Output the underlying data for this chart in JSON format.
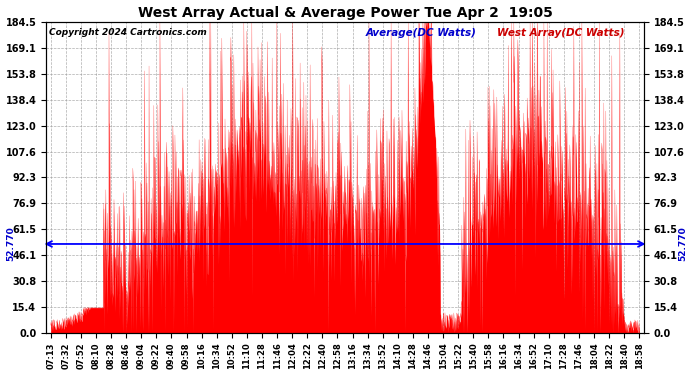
{
  "title": "West Array Actual & Average Power Tue Apr 2  19:05",
  "copyright": "Copyright 2024 Cartronics.com",
  "legend_avg": "Average(DC Watts)",
  "legend_west": "West Array(DC Watts)",
  "avg_value": 52.77,
  "avg_label": "52.770",
  "yticks": [
    0.0,
    15.4,
    30.8,
    46.1,
    61.5,
    76.9,
    92.3,
    107.6,
    123.0,
    138.4,
    153.8,
    169.1,
    184.5
  ],
  "ymax": 184.5,
  "ymin": 0.0,
  "avg_color": "#0000ff",
  "west_color": "#ff0000",
  "bg_color": "#ffffff",
  "grid_color": "#999999",
  "title_color": "#000000",
  "copyright_color": "#000000",
  "legend_avg_color": "#0000cc",
  "legend_west_color": "#cc0000",
  "avg_label_color": "#0000cc",
  "xtick_labels": [
    "07:13",
    "07:32",
    "07:52",
    "08:10",
    "08:28",
    "08:46",
    "09:04",
    "09:22",
    "09:40",
    "09:58",
    "10:16",
    "10:34",
    "10:52",
    "11:10",
    "11:28",
    "11:46",
    "12:04",
    "12:22",
    "12:40",
    "12:58",
    "13:16",
    "13:34",
    "13:52",
    "14:10",
    "14:28",
    "14:46",
    "15:04",
    "15:22",
    "15:40",
    "15:58",
    "16:16",
    "16:34",
    "16:52",
    "17:10",
    "17:28",
    "17:46",
    "18:04",
    "18:22",
    "18:40",
    "18:58"
  ],
  "base_shape": [
    3,
    4,
    8,
    20,
    32,
    38,
    42,
    50,
    55,
    60,
    65,
    75,
    95,
    110,
    105,
    85,
    80,
    80,
    75,
    70,
    65,
    60,
    65,
    70,
    95,
    185,
    15,
    8,
    60,
    75,
    90,
    110,
    105,
    95,
    80,
    70,
    60,
    45,
    10,
    2
  ]
}
